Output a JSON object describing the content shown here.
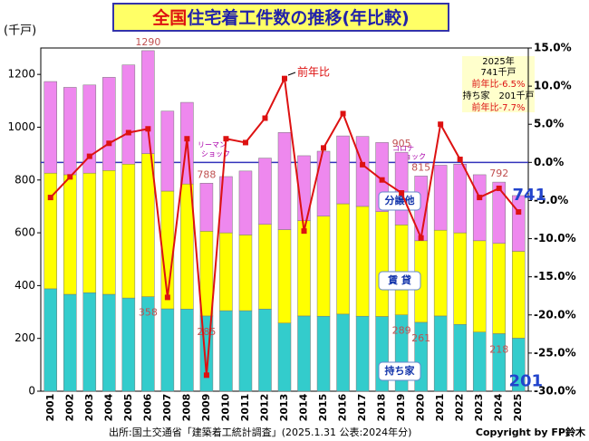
{
  "chart_data": {
    "type": "bar",
    "title_parts": [
      "全国",
      "住宅着工件数の推移(年比較)"
    ],
    "y_label": "(千戸)",
    "source": "出所:国土交通省「建築着工統計調査」(2025.1.31 公表:2024年分)",
    "copyright": "Copyright by FP鈴木",
    "categories": [
      "2001",
      "2002",
      "2003",
      "2004",
      "2005",
      "2006",
      "2007",
      "2008",
      "2009",
      "2010",
      "2011",
      "2012",
      "2013",
      "2014",
      "2015",
      "2016",
      "2017",
      "2018",
      "2019",
      "2020",
      "2021",
      "2022",
      "2023",
      "2024",
      "2025"
    ],
    "series": [
      {
        "name": "持ち家",
        "color": "#33cccc",
        "values": [
          388,
          367,
          373,
          367,
          353,
          358,
          312,
          311,
          285,
          305,
          305,
          311,
          258,
          285,
          284,
          292,
          284,
          283,
          289,
          261,
          285,
          253,
          224,
          218,
          201
        ],
        "value_labels": [
          null,
          null,
          null,
          null,
          null,
          "358",
          null,
          null,
          "285",
          null,
          null,
          null,
          null,
          null,
          null,
          null,
          null,
          null,
          "289",
          "261",
          null,
          null,
          null,
          "218",
          "201"
        ]
      },
      {
        "name": "賃 貸",
        "color": "#ffff00",
        "values": [
          438,
          453,
          453,
          469,
          507,
          542,
          446,
          474,
          321,
          295,
          287,
          321,
          354,
          361,
          379,
          418,
          416,
          397,
          341,
          309,
          325,
          347,
          346,
          342,
          329
        ]
      },
      {
        "name": "分譲他",
        "color": "#ee88ee",
        "values": [
          347,
          331,
          334,
          353,
          376,
          390,
          303,
          309,
          182,
          213,
          242,
          251,
          368,
          246,
          246,
          257,
          265,
          262,
          275,
          245,
          246,
          260,
          250,
          232,
          211
        ]
      },
      {
        "name": "前年比",
        "color": "#dd1111",
        "type": "line",
        "axis": "y2",
        "values": [
          -4.6,
          -1.9,
          0.8,
          2.5,
          3.9,
          4.4,
          -17.7,
          3.1,
          -27.9,
          3.1,
          2.6,
          5.8,
          11.0,
          -9.0,
          1.9,
          6.4,
          -0.3,
          -2.3,
          -4.0,
          -9.9,
          5.0,
          0.4,
          -4.6,
          -3.4,
          -6.5
        ]
      }
    ],
    "total_labels": [
      null,
      null,
      null,
      null,
      null,
      "1290",
      null,
      null,
      "788",
      null,
      null,
      null,
      null,
      null,
      null,
      null,
      null,
      null,
      "905",
      "815",
      null,
      null,
      null,
      "792",
      "741"
    ],
    "ylim": [
      0,
      1300
    ],
    "yticks": [
      0,
      200,
      400,
      600,
      800,
      1000,
      1200
    ],
    "y2lim": [
      -30,
      15
    ],
    "y2ticks": [
      {
        "value": -30,
        "label": "-30.0%"
      },
      {
        "value": -25,
        "label": "-25.0%"
      },
      {
        "value": -20,
        "label": "-20.0%"
      },
      {
        "value": -15,
        "label": "-15.0%"
      },
      {
        "value": -10,
        "label": "-10.0%"
      },
      {
        "value": -5,
        "label": "-5.0%"
      },
      {
        "value": 0,
        "label": "0.0%"
      },
      {
        "value": 5,
        "label": "5.0%"
      },
      {
        "value": 10,
        "label": "10.0%"
      },
      {
        "value": 15,
        "label": "15.0%"
      }
    ],
    "annotations": {
      "lehman": [
        "リーマン",
        "ショック"
      ],
      "corona": [
        "コロナ",
        "ショック"
      ],
      "summary": [
        "2025年",
        "741千戸",
        "前年比-6.5%",
        "持ち家　201千戸",
        "前年比-7.7%"
      ]
    }
  }
}
